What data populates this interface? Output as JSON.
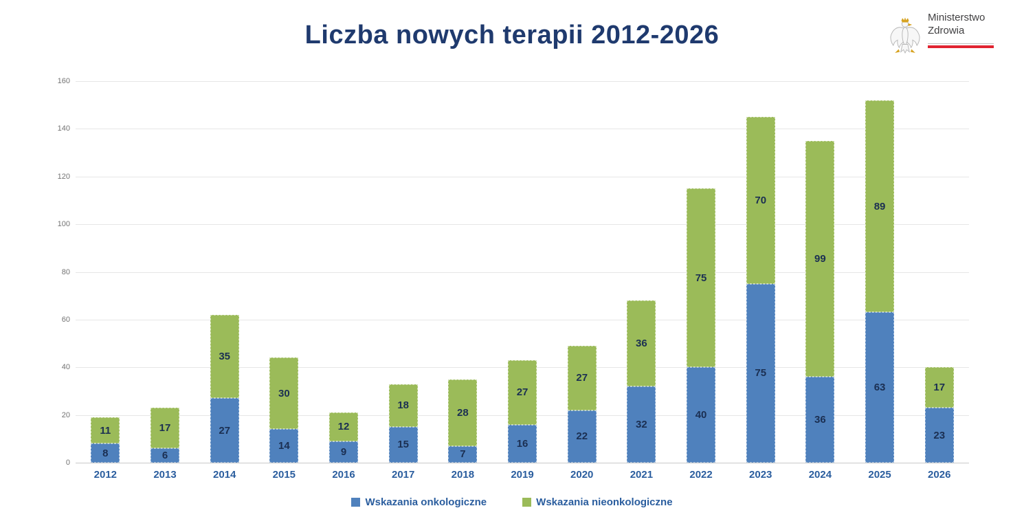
{
  "title": "Liczba nowych terapii 2012-2026",
  "logo": {
    "line1": "Ministerstwo",
    "line2": "Zdrowia",
    "red_line_color": "#e02330"
  },
  "colors": {
    "oncology_blue": "#4f81bd",
    "non_oncology_green": "#9bbb59",
    "title_navy": "#1f3a6e",
    "axis_label_blue": "#2a5d9e",
    "data_label_navy": "#1b2f52",
    "ytick_gray": "#737373"
  },
  "chart_data": {
    "type": "bar",
    "stacked": true,
    "title": "Liczba nowych terapii 2012-2026",
    "xlabel": "",
    "ylabel": "",
    "ylim": [
      0,
      160
    ],
    "ytick_step": 20,
    "grid": true,
    "legend_position": "bottom",
    "categories": [
      "2012",
      "2013",
      "2014",
      "2015",
      "2016",
      "2017",
      "2018",
      "2019",
      "2020",
      "2021",
      "2022",
      "2023",
      "2024",
      "2025",
      "2026"
    ],
    "series": [
      {
        "name": "Wskazania onkologiczne",
        "color": "#4f81bd",
        "values": [
          8,
          6,
          27,
          14,
          9,
          15,
          7,
          16,
          22,
          32,
          40,
          75,
          36,
          63,
          23
        ]
      },
      {
        "name": "Wskazania nieonkologiczne",
        "color": "#9bbb59",
        "values": [
          11,
          17,
          35,
          30,
          12,
          18,
          28,
          27,
          27,
          36,
          75,
          70,
          99,
          89,
          17
        ]
      }
    ],
    "totals": [
      19,
      23,
      62,
      44,
      21,
      33,
      35,
      43,
      49,
      68,
      115,
      145,
      135,
      152,
      40
    ]
  }
}
